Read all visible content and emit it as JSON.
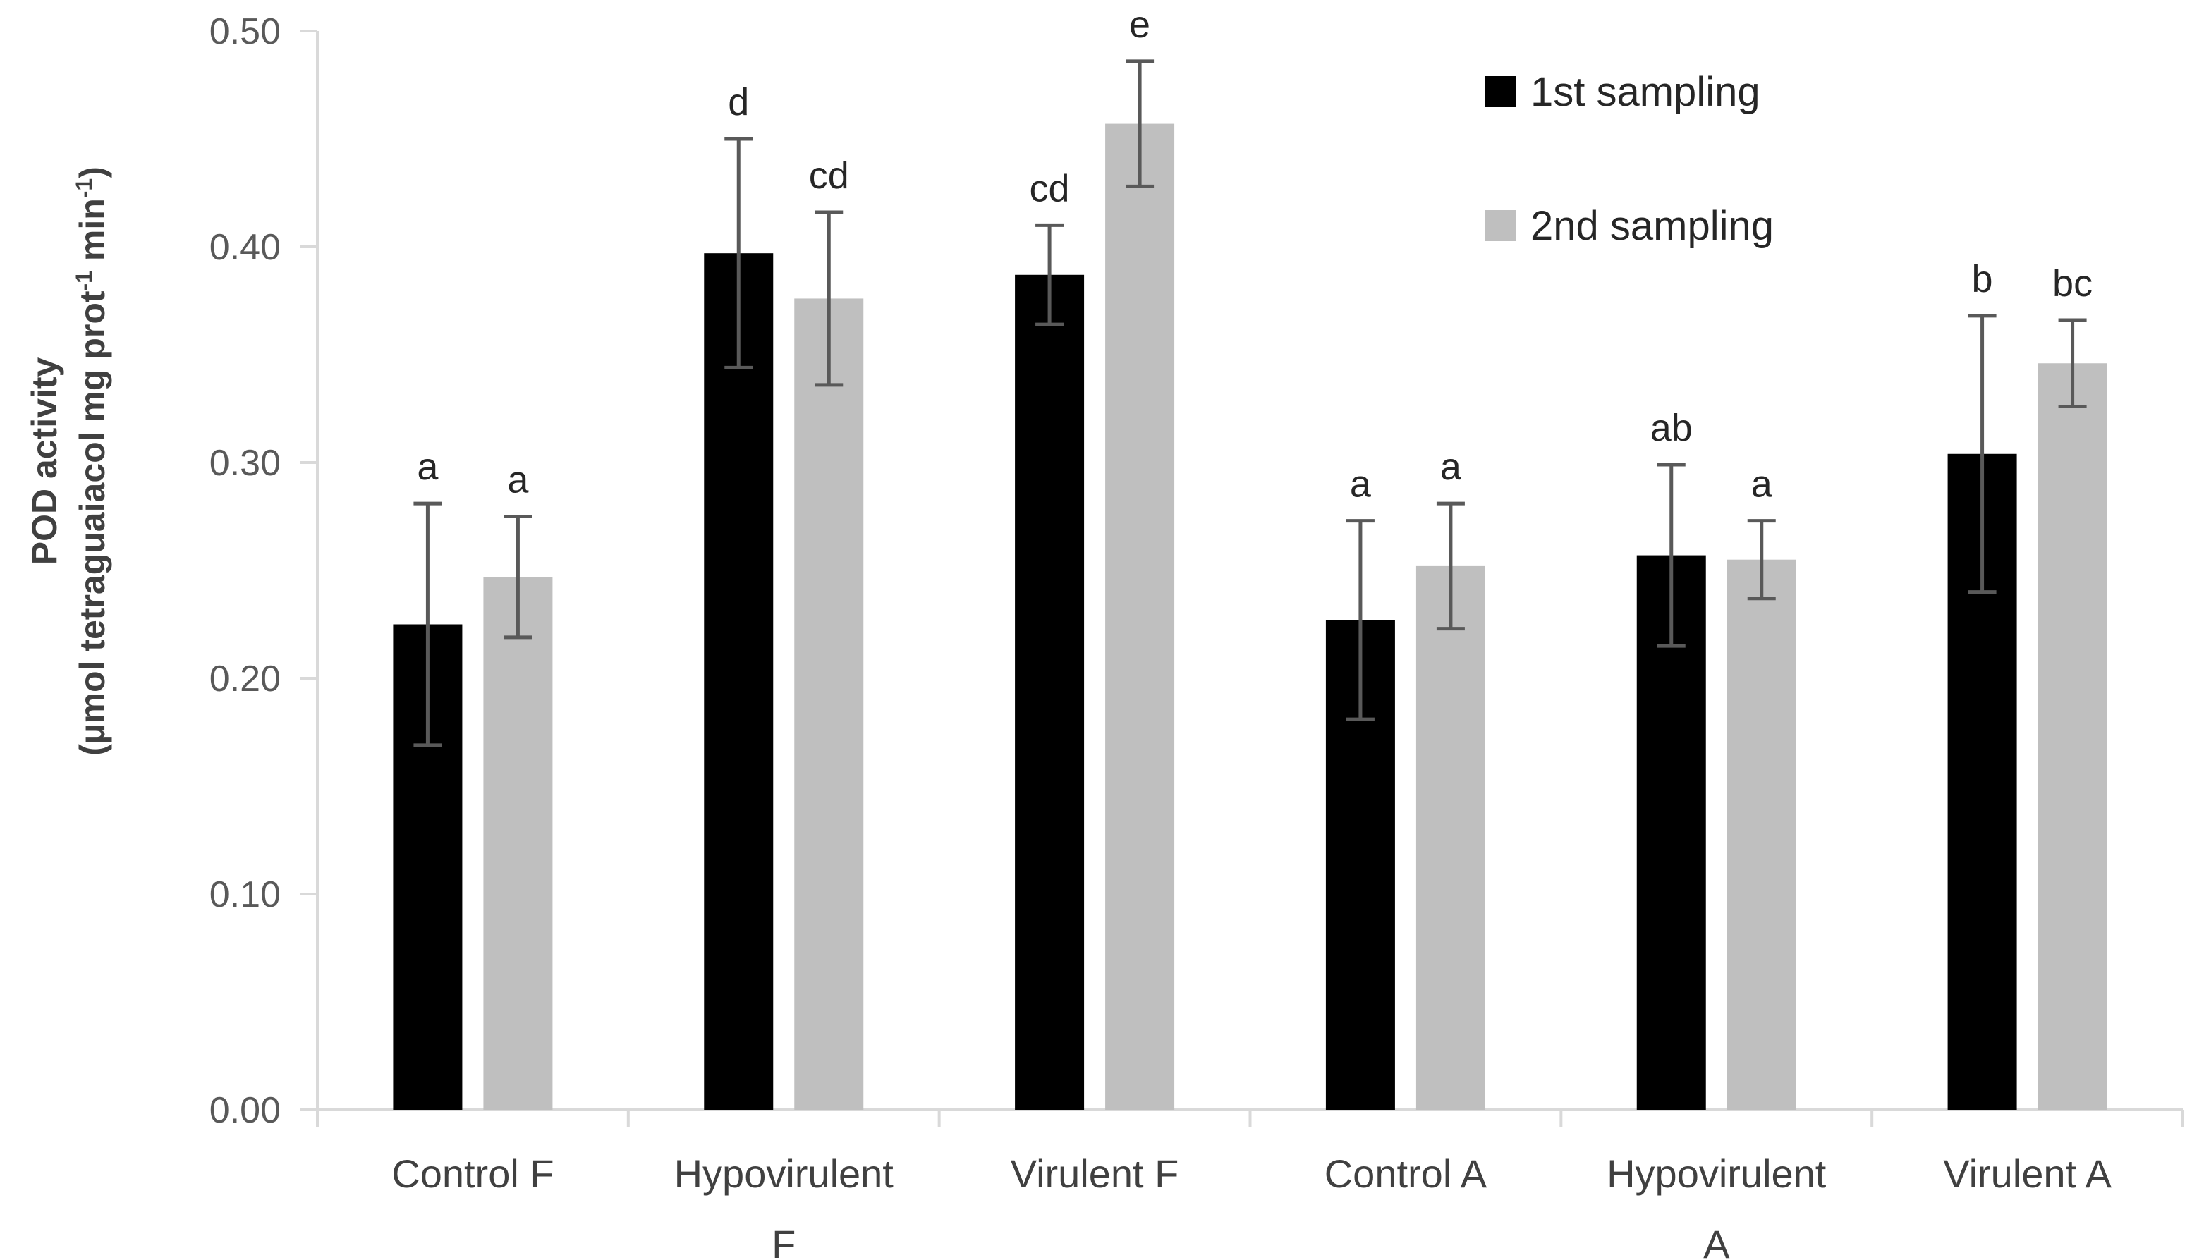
{
  "chart_data": {
    "type": "bar",
    "title": "",
    "xlabel": "",
    "ylabel": "POD activity",
    "ylabel_unit": {
      "prefix": "(µmol tetraguaiacol mg prot",
      "sup1": "-1",
      "middle": " min",
      "sup2": "-1",
      "suffix": ")"
    },
    "ylim": [
      0,
      0.5
    ],
    "yticks": [
      0.0,
      0.1,
      0.2,
      0.3,
      0.4,
      0.5
    ],
    "ytick_labels": [
      "0.00",
      "0.10",
      "0.20",
      "0.30",
      "0.40",
      "0.50"
    ],
    "grid": false,
    "legend_position": "top-right",
    "categories": [
      [
        "Control F"
      ],
      [
        "Hypovirulent",
        "F"
      ],
      [
        "Virulent F"
      ],
      [
        "Control A"
      ],
      [
        "Hypovirulent",
        "A"
      ],
      [
        "Virulent A"
      ]
    ],
    "series": [
      {
        "name": "1st sampling",
        "color": "#000000",
        "values": [
          0.225,
          0.397,
          0.387,
          0.227,
          0.257,
          0.304
        ],
        "errors": [
          0.056,
          0.053,
          0.023,
          0.046,
          0.042,
          0.064
        ],
        "significance": [
          "a",
          "d",
          "cd",
          "a",
          "ab",
          "b"
        ]
      },
      {
        "name": "2nd sampling",
        "color": "#bfbfbf",
        "values": [
          0.247,
          0.376,
          0.457,
          0.252,
          0.255,
          0.346
        ],
        "errors": [
          0.028,
          0.04,
          0.029,
          0.029,
          0.018,
          0.02
        ],
        "significance": [
          "a",
          "cd",
          "e",
          "a",
          "a",
          "bc"
        ]
      }
    ],
    "colors": {
      "axis": "#d9d9d9",
      "error_bar": "#595959"
    }
  }
}
